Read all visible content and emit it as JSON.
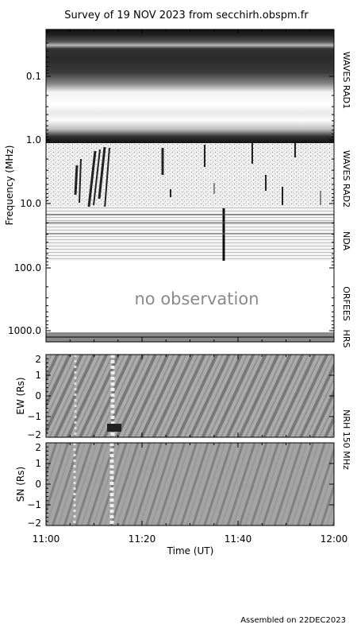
{
  "title": "Survey of 19 NOV 2023 from secchirh.obspm.fr",
  "footer": "Assembled on 22DEC2023",
  "colors": {
    "background": "#ffffff",
    "axis": "#000000"
  },
  "chart_data": [
    {
      "type": "heatmap",
      "name": "dynamic-spectrum",
      "ylabel": "Frequency (MHz)",
      "y_scale": "log",
      "y_inverted": true,
      "y_ticks": [
        "0.1",
        "1.0",
        "10.0",
        "100.0",
        "1000.0"
      ],
      "x_ticks": [
        "11:00",
        "11:20",
        "11:40",
        "12:00"
      ],
      "panels": [
        {
          "label": "WAVES RAD1"
        },
        {
          "label": "WAVES RAD2"
        },
        {
          "label": "NDA"
        },
        {
          "label": "ORFEES",
          "note": "no observation"
        },
        {
          "label": "HRS"
        }
      ]
    },
    {
      "type": "heatmap",
      "name": "nrh-ew",
      "ylabel": "EW (Rs)",
      "y_ticks": [
        "2",
        "1",
        "0",
        "−1",
        "−2"
      ],
      "ylim": [
        -2,
        2
      ]
    },
    {
      "type": "heatmap",
      "name": "nrh-sn",
      "ylabel": "SN (Rs)",
      "y_ticks": [
        "2",
        "1",
        "0",
        "−1",
        "−2"
      ],
      "ylim": [
        -2,
        2
      ],
      "xlabel": "Time (UT)",
      "x_ticks": [
        "11:00",
        "11:20",
        "11:40",
        "12:00"
      ],
      "xlim": [
        "11:00",
        "12:00"
      ]
    }
  ],
  "nrh_label": "NRH 150 MHz"
}
